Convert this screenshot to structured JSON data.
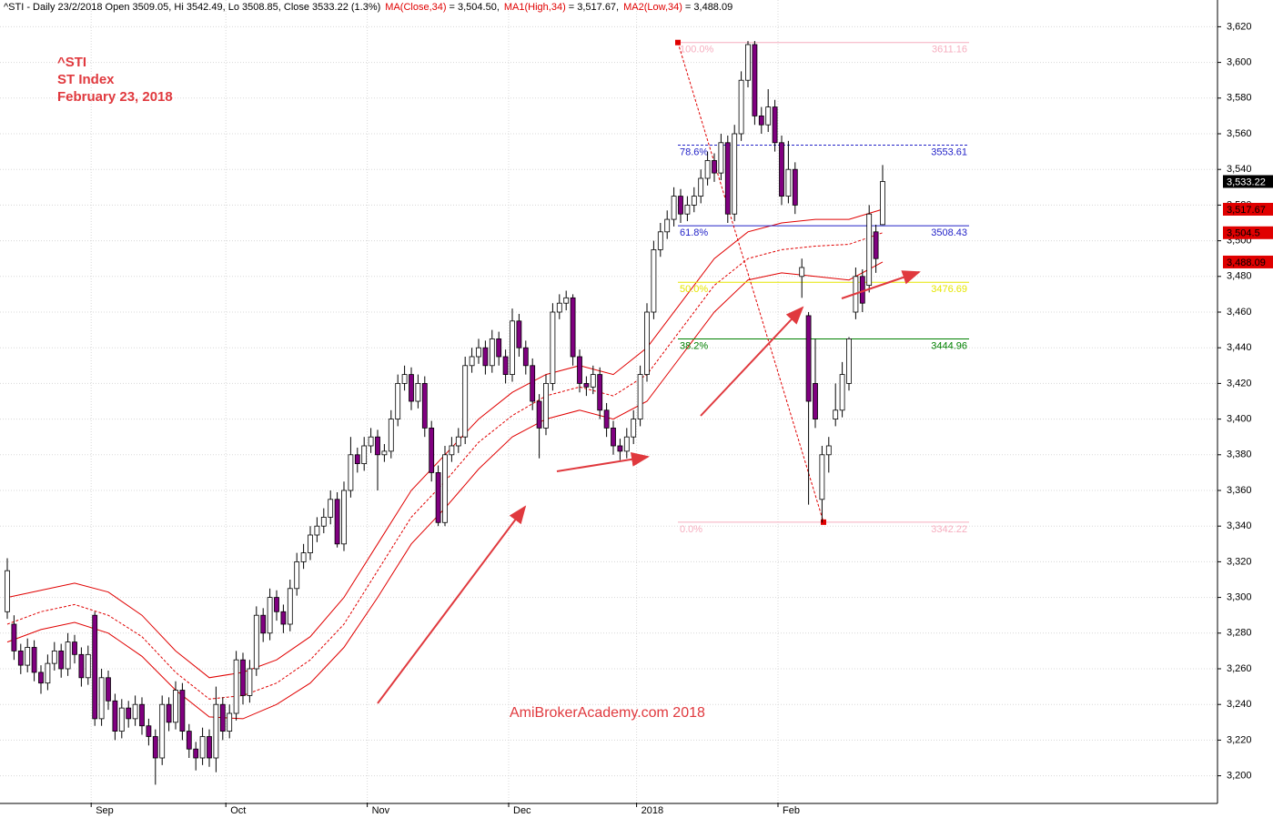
{
  "chart_data": {
    "type": "candlestick",
    "header": {
      "text": "^STI - Daily 23/2/2018 Open 3509.05, Hi 3542.49, Lo 3508.85, Close 3533.22 (1.3%)",
      "items": [
        {
          "label": "MA(Close,34)",
          "value": "= 3,504.50,"
        },
        {
          "label": "MA1(High,34)",
          "value": "= 3,517.67,"
        },
        {
          "label": "MA2(Low,34)",
          "value": "= 3,488.09"
        }
      ]
    },
    "title": "^STI",
    "subtitle": "ST Index",
    "date": "February 23, 2018",
    "watermark": "AmiBrokerAcademy.com  2018",
    "categories": [
      null,
      null,
      null,
      null,
      null,
      null,
      null,
      null,
      null,
      null,
      null,
      null,
      null,
      "Sep",
      null,
      null,
      null,
      null,
      null,
      null,
      null,
      null,
      null,
      null,
      null,
      null,
      null,
      null,
      null,
      null,
      null,
      null,
      null,
      "Oct",
      null,
      null,
      null,
      null,
      null,
      null,
      null,
      null,
      null,
      null,
      null,
      null,
      null,
      null,
      null,
      null,
      null,
      null,
      null,
      null,
      "Nov",
      null,
      null,
      null,
      null,
      null,
      null,
      null,
      null,
      null,
      null,
      null,
      null,
      null,
      null,
      null,
      null,
      null,
      null,
      null,
      null,
      "Dec",
      null,
      null,
      null,
      null,
      null,
      null,
      null,
      null,
      null,
      null,
      null,
      null,
      null,
      null,
      null,
      null,
      null,
      null,
      "2018",
      null,
      null,
      null,
      null,
      null,
      null,
      null,
      null,
      null,
      null,
      null,
      null,
      null,
      null,
      null,
      null,
      null,
      null,
      null,
      null,
      "Feb",
      null,
      null,
      null,
      null,
      null,
      null,
      null,
      null,
      null,
      null,
      null,
      null,
      null,
      null,
      null
    ],
    "ohlc": [
      [
        3292,
        3322,
        3288,
        3315
      ],
      [
        3285,
        3290,
        3265,
        3270
      ],
      [
        3270,
        3274,
        3257,
        3262
      ],
      [
        3262,
        3277,
        3258,
        3272
      ],
      [
        3272,
        3276,
        3253,
        3258
      ],
      [
        3258,
        3262,
        3246,
        3252
      ],
      [
        3252,
        3268,
        3248,
        3263
      ],
      [
        3263,
        3275,
        3259,
        3270
      ],
      [
        3270,
        3274,
        3255,
        3260
      ],
      [
        3260,
        3280,
        3256,
        3275
      ],
      [
        3275,
        3279,
        3263,
        3268
      ],
      [
        3268,
        3272,
        3250,
        3255
      ],
      [
        3255,
        3273,
        3251,
        3268
      ],
      [
        3290,
        3292,
        3228,
        3232
      ],
      [
        3232,
        3260,
        3228,
        3255
      ],
      [
        3255,
        3259,
        3237,
        3242
      ],
      [
        3242,
        3246,
        3220,
        3225
      ],
      [
        3225,
        3243,
        3221,
        3238
      ],
      [
        3238,
        3242,
        3227,
        3232
      ],
      [
        3232,
        3245,
        3228,
        3240
      ],
      [
        3240,
        3244,
        3223,
        3228
      ],
      [
        3228,
        3232,
        3217,
        3222
      ],
      [
        3222,
        3226,
        3195,
        3210
      ],
      [
        3210,
        3245,
        3206,
        3240
      ],
      [
        3240,
        3244,
        3225,
        3230
      ],
      [
        3230,
        3253,
        3226,
        3248
      ],
      [
        3248,
        3252,
        3220,
        3225
      ],
      [
        3225,
        3229,
        3210,
        3215
      ],
      [
        3215,
        3219,
        3203,
        3210
      ],
      [
        3210,
        3227,
        3206,
        3222
      ],
      [
        3222,
        3226,
        3205,
        3210
      ],
      [
        3210,
        3250,
        3202,
        3240
      ],
      [
        3240,
        3244,
        3220,
        3225
      ],
      [
        3225,
        3240,
        3221,
        3235
      ],
      [
        3235,
        3270,
        3231,
        3265
      ],
      [
        3265,
        3269,
        3240,
        3245
      ],
      [
        3245,
        3265,
        3241,
        3260
      ],
      [
        3260,
        3295,
        3256,
        3290
      ],
      [
        3290,
        3294,
        3275,
        3280
      ],
      [
        3280,
        3305,
        3276,
        3300
      ],
      [
        3300,
        3304,
        3287,
        3292
      ],
      [
        3292,
        3296,
        3280,
        3285
      ],
      [
        3285,
        3310,
        3281,
        3305
      ],
      [
        3305,
        3325,
        3301,
        3320
      ],
      [
        3320,
        3330,
        3316,
        3325
      ],
      [
        3325,
        3340,
        3321,
        3335
      ],
      [
        3335,
        3345,
        3331,
        3340
      ],
      [
        3340,
        3350,
        3336,
        3345
      ],
      [
        3345,
        3360,
        3341,
        3355
      ],
      [
        3355,
        3359,
        3328,
        3330
      ],
      [
        3330,
        3365,
        3326,
        3360
      ],
      [
        3360,
        3390,
        3356,
        3380
      ],
      [
        3380,
        3384,
        3370,
        3375
      ],
      [
        3375,
        3390,
        3371,
        3385
      ],
      [
        3385,
        3395,
        3381,
        3390
      ],
      [
        3390,
        3394,
        3360,
        3380
      ],
      [
        3380,
        3386,
        3376,
        3382
      ],
      [
        3382,
        3405,
        3378,
        3400
      ],
      [
        3400,
        3425,
        3396,
        3420
      ],
      [
        3420,
        3430,
        3416,
        3425
      ],
      [
        3425,
        3429,
        3405,
        3410
      ],
      [
        3410,
        3425,
        3406,
        3420
      ],
      [
        3420,
        3424,
        3390,
        3395
      ],
      [
        3395,
        3399,
        3365,
        3370
      ],
      [
        3370,
        3374,
        3340,
        3342
      ],
      [
        3342,
        3385,
        3340,
        3380
      ],
      [
        3380,
        3390,
        3376,
        3385
      ],
      [
        3385,
        3395,
        3381,
        3390
      ],
      [
        3390,
        3435,
        3386,
        3430
      ],
      [
        3430,
        3440,
        3426,
        3435
      ],
      [
        3435,
        3445,
        3431,
        3440
      ],
      [
        3440,
        3444,
        3425,
        3430
      ],
      [
        3430,
        3450,
        3426,
        3445
      ],
      [
        3445,
        3449,
        3430,
        3435
      ],
      [
        3435,
        3439,
        3420,
        3425
      ],
      [
        3425,
        3462,
        3421,
        3455
      ],
      [
        3455,
        3459,
        3435,
        3440
      ],
      [
        3440,
        3444,
        3425,
        3430
      ],
      [
        3430,
        3434,
        3405,
        3410
      ],
      [
        3410,
        3414,
        3378,
        3395
      ],
      [
        3395,
        3425,
        3391,
        3420
      ],
      [
        3420,
        3465,
        3416,
        3460
      ],
      [
        3460,
        3470,
        3456,
        3465
      ],
      [
        3465,
        3472,
        3461,
        3468
      ],
      [
        3468,
        3470,
        3430,
        3435
      ],
      [
        3435,
        3439,
        3415,
        3420
      ],
      [
        3420,
        3424,
        3413,
        3418
      ],
      [
        3418,
        3430,
        3414,
        3425
      ],
      [
        3425,
        3429,
        3400,
        3405
      ],
      [
        3405,
        3409,
        3390,
        3395
      ],
      [
        3395,
        3399,
        3380,
        3385
      ],
      [
        3385,
        3389,
        3377,
        3382
      ],
      [
        3382,
        3395,
        3378,
        3390
      ],
      [
        3390,
        3405,
        3386,
        3400
      ],
      [
        3400,
        3430,
        3396,
        3425
      ],
      [
        3425,
        3465,
        3421,
        3460
      ],
      [
        3460,
        3500,
        3456,
        3495
      ],
      [
        3495,
        3510,
        3491,
        3505
      ],
      [
        3505,
        3517,
        3501,
        3512
      ],
      [
        3512,
        3530,
        3508,
        3525
      ],
      [
        3525,
        3529,
        3510,
        3515
      ],
      [
        3515,
        3525,
        3511,
        3520
      ],
      [
        3520,
        3530,
        3516,
        3525
      ],
      [
        3525,
        3540,
        3521,
        3535
      ],
      [
        3535,
        3550,
        3531,
        3545
      ],
      [
        3545,
        3549,
        3533,
        3538
      ],
      [
        3538,
        3560,
        3534,
        3555
      ],
      [
        3555,
        3559,
        3510,
        3515
      ],
      [
        3515,
        3565,
        3511,
        3560
      ],
      [
        3560,
        3595,
        3556,
        3590
      ],
      [
        3590,
        3612,
        3586,
        3610
      ],
      [
        3610,
        3612,
        3565,
        3570
      ],
      [
        3570,
        3575,
        3560,
        3565
      ],
      [
        3565,
        3585,
        3561,
        3575
      ],
      [
        3575,
        3579,
        3550,
        3555
      ],
      [
        3555,
        3559,
        3520,
        3525
      ],
      [
        3525,
        3556,
        3521,
        3540
      ],
      [
        3540,
        3544,
        3515,
        3520
      ],
      [
        3480,
        3490,
        3468,
        3485
      ],
      [
        3458,
        3460,
        3352,
        3410
      ],
      [
        3420,
        3445,
        3395,
        3400
      ],
      [
        3355,
        3385,
        3342,
        3380
      ],
      [
        3380,
        3390,
        3370,
        3385
      ],
      [
        3400,
        3420,
        3396,
        3405
      ],
      [
        3405,
        3432,
        3401,
        3425
      ],
      [
        3420,
        3446,
        3416,
        3445
      ],
      [
        3460,
        3485,
        3456,
        3480
      ],
      [
        3480,
        3484,
        3460,
        3465
      ],
      [
        3475,
        3520,
        3471,
        3515
      ],
      [
        3505,
        3509,
        3482,
        3490
      ],
      [
        3509.05,
        3542.49,
        3508.85,
        3533.22
      ]
    ],
    "up_color": "#ffffff",
    "down_color": "#800080",
    "series": [
      {
        "color": "#e00000",
        "dashed": false,
        "x": [
          0,
          5,
          10,
          15,
          20,
          25,
          30,
          35,
          40,
          45,
          50,
          55,
          60,
          65,
          70,
          75,
          80,
          85,
          90,
          95,
          100,
          105,
          110,
          115,
          120,
          125,
          130
        ],
        "values": [
          3300,
          3304,
          3308,
          3303,
          3290,
          3270,
          3255,
          3258,
          3265,
          3278,
          3300,
          3330,
          3360,
          3380,
          3400,
          3415,
          3425,
          3430,
          3425,
          3440,
          3465,
          3490,
          3505,
          3510,
          3512,
          3512,
          3517.67
        ]
      },
      {
        "color": "#e00000",
        "dashed": true,
        "x": [
          0,
          5,
          10,
          15,
          20,
          25,
          30,
          35,
          40,
          45,
          50,
          55,
          60,
          65,
          70,
          75,
          80,
          85,
          90,
          95,
          100,
          105,
          110,
          115,
          120,
          125,
          130
        ],
        "values": [
          3285,
          3292,
          3296,
          3290,
          3278,
          3258,
          3243,
          3245,
          3252,
          3265,
          3285,
          3315,
          3345,
          3365,
          3387,
          3402,
          3413,
          3418,
          3413,
          3425,
          3450,
          3475,
          3490,
          3495,
          3497,
          3498,
          3504.5
        ]
      },
      {
        "color": "#e00000",
        "dashed": false,
        "x": [
          0,
          5,
          10,
          15,
          20,
          25,
          30,
          35,
          40,
          45,
          50,
          55,
          60,
          65,
          70,
          75,
          80,
          85,
          90,
          95,
          100,
          105,
          110,
          115,
          120,
          125,
          130
        ],
        "values": [
          3275,
          3282,
          3286,
          3280,
          3267,
          3248,
          3233,
          3232,
          3240,
          3252,
          3272,
          3300,
          3330,
          3350,
          3372,
          3390,
          3400,
          3405,
          3400,
          3410,
          3435,
          3460,
          3478,
          3482,
          3480,
          3478,
          3488.09
        ]
      }
    ],
    "fib": [
      {
        "label": "100.0%",
        "value": 3611.16,
        "color": "#f6aebf",
        "dashed": false
      },
      {
        "label": "78.6%",
        "value": 3553.61,
        "color": "#2323c8",
        "dashed": true
      },
      {
        "label": "61.8%",
        "value": 3508.43,
        "color": "#2323c8",
        "dashed": false
      },
      {
        "label": "50.0%",
        "value": 3476.69,
        "color": "#e6e600",
        "dashed": false
      },
      {
        "label": "38.2%",
        "value": 3444.96,
        "color": "#008000",
        "dashed": false
      },
      {
        "label": "0.0%",
        "value": 3342.22,
        "color": "#f6aebf",
        "dashed": false
      }
    ],
    "price_tags": [
      {
        "value": 3533.22,
        "label": "3,533.22",
        "color": "#000000"
      },
      {
        "value": 3517.67,
        "label": "3,517.67",
        "color": "#e00000"
      },
      {
        "value": 3504.5,
        "label": "3,504.5",
        "color": "#e00000"
      },
      {
        "value": 3488.09,
        "label": "3,488.09",
        "color": "#e00000"
      }
    ],
    "ylim": [
      3185,
      3635
    ],
    "yticks": [
      {
        "value": 3200,
        "label": "3,200"
      },
      {
        "value": 3220,
        "label": "3,220"
      },
      {
        "value": 3240,
        "label": "3,240"
      },
      {
        "value": 3260,
        "label": "3,260"
      },
      {
        "value": 3280,
        "label": "3,280"
      },
      {
        "value": 3300,
        "label": "3,300"
      },
      {
        "value": 3320,
        "label": "3,320"
      },
      {
        "value": 3340,
        "label": "3,340"
      },
      {
        "value": 3360,
        "label": "3,360"
      },
      {
        "value": 3380,
        "label": "3,380"
      },
      {
        "value": 3400,
        "label": "3,400"
      },
      {
        "value": 3420,
        "label": "3,420"
      },
      {
        "value": 3440,
        "label": "3,440"
      },
      {
        "value": 3460,
        "label": "3,460"
      },
      {
        "value": 3480,
        "label": "3,480"
      },
      {
        "value": 3500,
        "label": "3,500"
      },
      {
        "value": 3520,
        "label": "3,520"
      },
      {
        "value": 3540,
        "label": "3,540"
      },
      {
        "value": 3560,
        "label": "3,560"
      },
      {
        "value": 3580,
        "label": "3,580"
      },
      {
        "value": 3600,
        "label": "3,600"
      },
      {
        "value": 3620,
        "label": "3,620"
      }
    ],
    "grid": true
  }
}
